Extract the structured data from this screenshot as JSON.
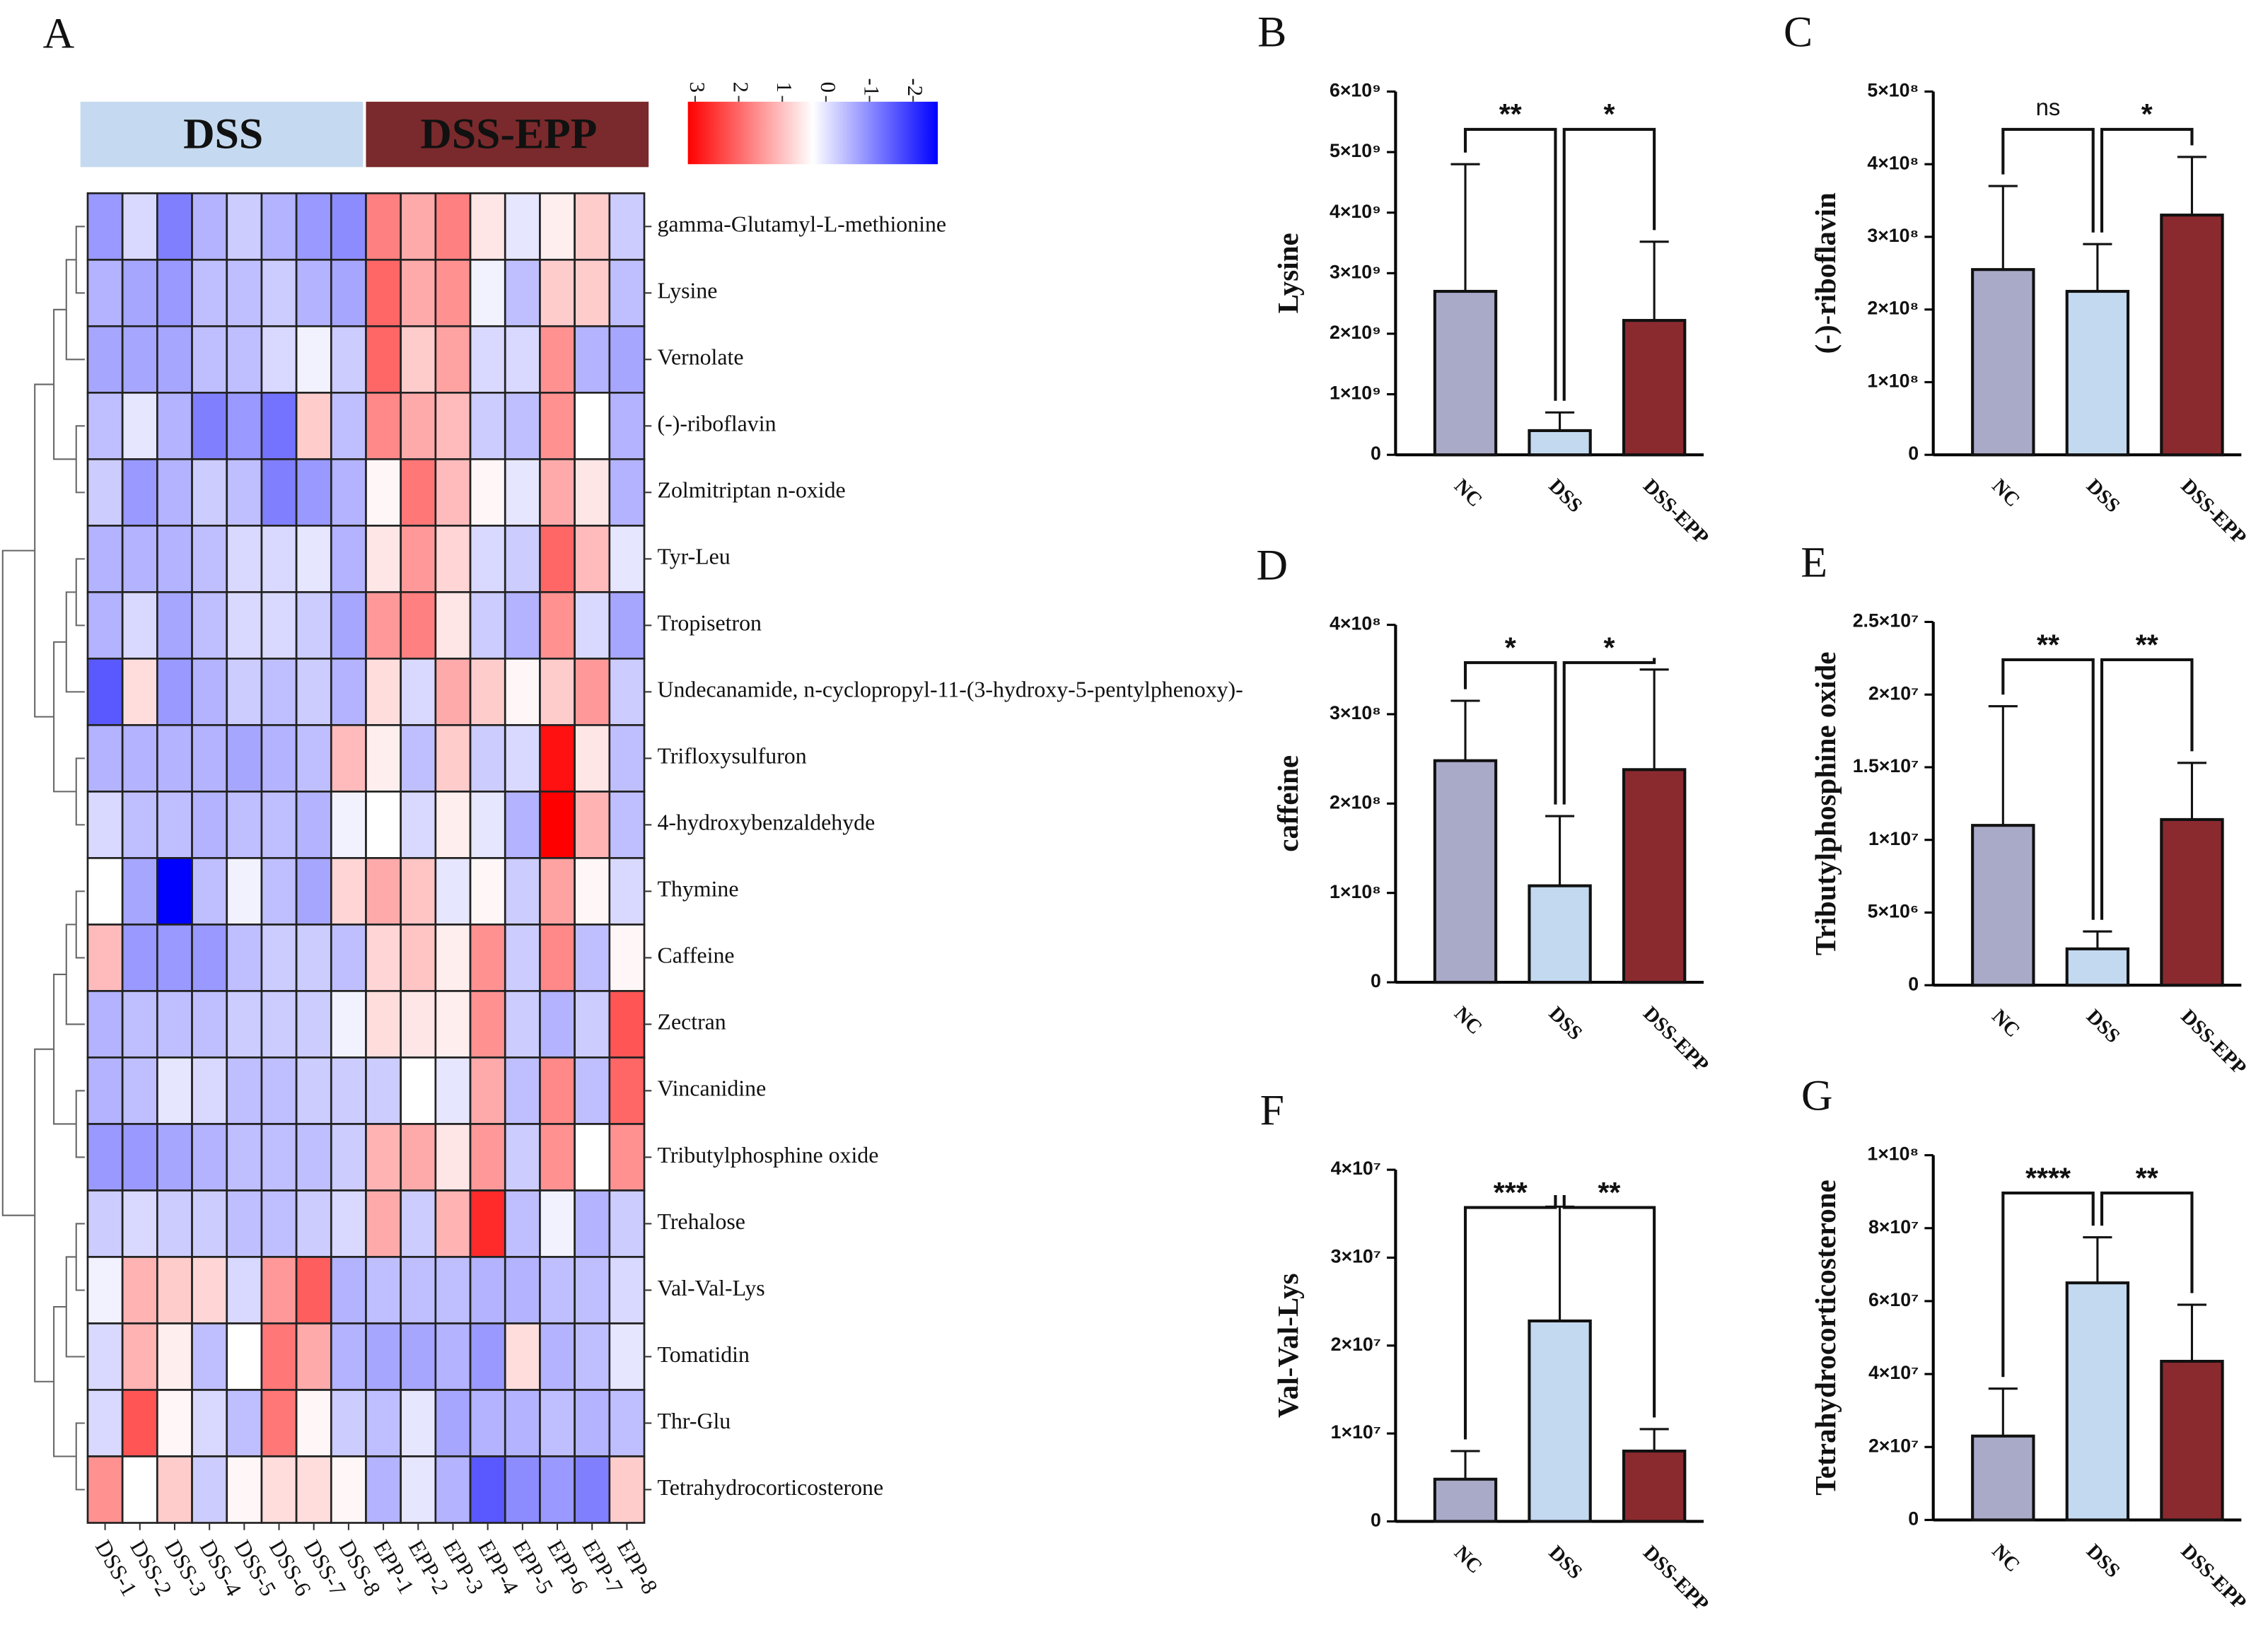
{
  "chart_data": [
    {
      "type": "heatmap",
      "label": "A",
      "rows": [
        "gamma-Glutamyl-L-methionine",
        "Lysine",
        "Vernolate",
        "(-)-riboflavin",
        "Zolmitriptan n-oxide",
        "Tyr-Leu",
        "Tropisetron",
        "Undecanamide, n-cyclopropyl-11-(3-hydroxy-5-pentylphenoxy)-",
        "Trifloxysulfuron",
        "4-hydroxybenzaldehyde",
        "Thymine",
        "Caffeine",
        "Zectran",
        "Vincanidine",
        "Tributylphosphine oxide",
        "Trehalose",
        "Val-Val-Lys",
        "Tomatidin",
        "Thr-Glu",
        "Tetrahydrocorticosterone"
      ],
      "columns": [
        "DSS-1",
        "DSS-2",
        "DSS-3",
        "DSS-4",
        "DSS-5",
        "DSS-6",
        "DSS-7",
        "DSS-8",
        "EPP-1",
        "EPP-2",
        "EPP-3",
        "EPP-4",
        "EPP-5",
        "EPP-6",
        "EPP-7",
        "EPP-8"
      ],
      "groups": [
        {
          "name": "DSS",
          "color": "#c5daf0"
        },
        {
          "name": "DSS-EPP",
          "color": "#7a2a2c"
        }
      ],
      "values": [
        [
          -0.8,
          -0.3,
          -1.0,
          -0.6,
          -0.4,
          -0.6,
          -0.8,
          -0.9,
          1.5,
          1.0,
          1.5,
          0.3,
          -0.2,
          0.2,
          0.6,
          -0.4
        ],
        [
          -0.6,
          -0.7,
          -0.8,
          -0.5,
          -0.5,
          -0.4,
          -0.6,
          -0.7,
          1.8,
          1.0,
          1.3,
          -0.1,
          -0.5,
          0.6,
          0.6,
          -0.5
        ],
        [
          -0.7,
          -0.7,
          -0.7,
          -0.5,
          -0.5,
          -0.3,
          -0.1,
          -0.4,
          1.8,
          0.6,
          1.1,
          -0.3,
          -0.3,
          1.3,
          -0.6,
          -0.7
        ],
        [
          -0.5,
          -0.2,
          -0.6,
          -1.0,
          -0.8,
          -1.1,
          0.6,
          -0.5,
          1.4,
          1.0,
          0.8,
          -0.4,
          -0.5,
          1.3,
          0.0,
          -0.6
        ],
        [
          -0.4,
          -0.8,
          -0.6,
          -0.4,
          -0.5,
          -1.0,
          -0.8,
          -0.6,
          0.1,
          1.6,
          0.8,
          0.1,
          -0.2,
          1.0,
          0.3,
          -0.6
        ],
        [
          -0.6,
          -0.6,
          -0.6,
          -0.5,
          -0.3,
          -0.3,
          -0.2,
          -0.6,
          0.3,
          1.2,
          0.5,
          -0.3,
          -0.4,
          1.8,
          0.8,
          -0.2
        ],
        [
          -0.6,
          -0.3,
          -0.7,
          -0.5,
          -0.3,
          -0.3,
          -0.4,
          -0.7,
          1.2,
          1.5,
          0.3,
          -0.4,
          -0.6,
          1.3,
          -0.3,
          -0.7
        ],
        [
          -1.3,
          0.4,
          -0.8,
          -0.6,
          -0.4,
          -0.5,
          -0.4,
          -0.6,
          0.4,
          -0.3,
          1.0,
          0.6,
          0.1,
          0.6,
          1.2,
          -0.4
        ],
        [
          -0.6,
          -0.6,
          -0.6,
          -0.6,
          -0.7,
          -0.6,
          -0.5,
          0.8,
          0.2,
          -0.5,
          0.6,
          -0.4,
          -0.3,
          2.8,
          0.3,
          -0.5
        ],
        [
          -0.3,
          -0.5,
          -0.5,
          -0.6,
          -0.5,
          -0.5,
          -0.6,
          -0.1,
          0.0,
          -0.3,
          0.2,
          -0.2,
          -0.6,
          3.0,
          0.9,
          -0.5
        ],
        [
          0.0,
          -0.7,
          -2.0,
          -0.5,
          -0.1,
          -0.5,
          -0.7,
          0.5,
          1.0,
          0.7,
          -0.2,
          0.1,
          -0.4,
          1.1,
          0.1,
          -0.3
        ],
        [
          0.8,
          -0.8,
          -0.8,
          -0.8,
          -0.5,
          -0.4,
          -0.4,
          -0.5,
          0.5,
          0.7,
          0.2,
          1.3,
          -0.4,
          1.4,
          -0.5,
          0.1
        ],
        [
          -0.6,
          -0.5,
          -0.5,
          -0.5,
          -0.4,
          -0.4,
          -0.4,
          -0.1,
          0.4,
          0.3,
          0.2,
          1.3,
          -0.4,
          -0.6,
          -0.4,
          2.0
        ],
        [
          -0.6,
          -0.5,
          -0.2,
          -0.3,
          -0.5,
          -0.5,
          -0.4,
          -0.4,
          -0.4,
          0.0,
          -0.2,
          1.0,
          -0.5,
          1.4,
          -0.5,
          1.8
        ],
        [
          -0.8,
          -0.8,
          -0.7,
          -0.6,
          -0.5,
          -0.5,
          -0.5,
          -0.4,
          0.9,
          1.0,
          0.3,
          1.2,
          -0.4,
          1.3,
          0.0,
          1.3
        ],
        [
          -0.4,
          -0.3,
          -0.4,
          -0.4,
          -0.5,
          -0.5,
          -0.4,
          -0.3,
          1.0,
          -0.4,
          0.9,
          2.5,
          -0.5,
          -0.1,
          -0.6,
          -0.4
        ],
        [
          -0.1,
          0.9,
          0.6,
          0.5,
          -0.3,
          1.2,
          1.9,
          -0.6,
          -0.5,
          -0.5,
          -0.5,
          -0.6,
          -0.6,
          -0.5,
          -0.5,
          -0.3
        ],
        [
          -0.3,
          0.9,
          0.2,
          -0.5,
          0.0,
          1.6,
          1.0,
          -0.6,
          -0.7,
          -0.7,
          -0.6,
          -0.8,
          0.4,
          -0.6,
          -0.5,
          -0.2
        ],
        [
          -0.3,
          2.0,
          0.1,
          -0.3,
          -0.5,
          1.6,
          0.1,
          -0.4,
          -0.5,
          -0.2,
          -0.7,
          -0.6,
          -0.6,
          -0.5,
          -0.6,
          -0.5
        ],
        [
          1.3,
          0.0,
          0.6,
          -0.4,
          0.1,
          0.4,
          0.4,
          0.1,
          -0.6,
          -0.2,
          -0.6,
          -1.3,
          -0.9,
          -0.8,
          -1.0,
          0.6
        ]
      ],
      "clim": [
        -2,
        3
      ],
      "cticks": [
        3,
        2,
        1,
        0,
        -1,
        -2
      ],
      "colors": {
        "low": "#0000ff",
        "mid": "#ffffff",
        "high": "#ff0000"
      }
    },
    {
      "type": "bar",
      "label": "B",
      "ylabel": "Lysine",
      "categories": [
        "NC",
        "DSS",
        "DSS-EPP"
      ],
      "values": [
        2700000000,
        400000000,
        2220000000
      ],
      "errors": [
        2100000000,
        300000000,
        1300000000
      ],
      "colors": [
        "#a9aac8",
        "#c3d9f0",
        "#8a2a2f"
      ],
      "ylim": [
        0,
        6000000000
      ],
      "yticks": [
        0,
        {
          "value": 1000000000,
          "label": "1×10⁹"
        },
        {
          "value": 2000000000,
          "label": "2×10⁹"
        },
        {
          "value": 3000000000,
          "label": "3×10⁹"
        },
        {
          "value": 4000000000,
          "label": "4×10⁹"
        },
        {
          "value": 5000000000,
          "label": "5×10⁹"
        },
        {
          "value": 6000000000,
          "label": "6×10⁹"
        }
      ],
      "comparisons": [
        {
          "pair": [
            "NC",
            "DSS"
          ],
          "label": "**"
        },
        {
          "pair": [
            "DSS",
            "DSS-EPP"
          ],
          "label": "*"
        }
      ]
    },
    {
      "type": "bar",
      "label": "C",
      "ylabel": "(-)-riboflavin",
      "categories": [
        "NC",
        "DSS",
        "DSS-EPP"
      ],
      "values": [
        255000000,
        225000000,
        330000000
      ],
      "errors": [
        115000000,
        65000000,
        80000000
      ],
      "colors": [
        "#a9aac8",
        "#c3d9f0",
        "#8a2a2f"
      ],
      "ylim": [
        0,
        500000000
      ],
      "yticks": [
        0,
        {
          "value": 100000000,
          "label": "1×10⁸"
        },
        {
          "value": 200000000,
          "label": "2×10⁸"
        },
        {
          "value": 300000000,
          "label": "3×10⁸"
        },
        {
          "value": 400000000,
          "label": "4×10⁸"
        },
        {
          "value": 500000000,
          "label": "5×10⁸"
        }
      ],
      "comparisons": [
        {
          "pair": [
            "NC",
            "DSS"
          ],
          "label": "ns"
        },
        {
          "pair": [
            "DSS",
            "DSS-EPP"
          ],
          "label": "*"
        }
      ]
    },
    {
      "type": "bar",
      "label": "D",
      "ylabel": "caffeine",
      "categories": [
        "NC",
        "DSS",
        "DSS-EPP"
      ],
      "values": [
        248000000,
        108000000,
        238000000
      ],
      "errors": [
        67000000,
        78000000,
        112000000
      ],
      "colors": [
        "#a9aac8",
        "#c3d9f0",
        "#8a2a2f"
      ],
      "ylim": [
        0,
        400000000
      ],
      "yticks": [
        0,
        {
          "value": 100000000,
          "label": "1×10⁸"
        },
        {
          "value": 200000000,
          "label": "2×10⁸"
        },
        {
          "value": 300000000,
          "label": "3×10⁸"
        },
        {
          "value": 400000000,
          "label": "4×10⁸"
        }
      ],
      "comparisons": [
        {
          "pair": [
            "NC",
            "DSS"
          ],
          "label": "*"
        },
        {
          "pair": [
            "DSS",
            "DSS-EPP"
          ],
          "label": "*"
        }
      ]
    },
    {
      "type": "bar",
      "label": "E",
      "ylabel": "Tributylphosphine oxide",
      "categories": [
        "NC",
        "DSS",
        "DSS-EPP"
      ],
      "values": [
        11000000,
        2500000,
        11400000
      ],
      "errors": [
        8200000,
        1200000,
        3900000
      ],
      "colors": [
        "#a9aac8",
        "#c3d9f0",
        "#8a2a2f"
      ],
      "ylim": [
        0,
        25000000
      ],
      "yticks": [
        0,
        {
          "value": 5000000,
          "label": "5×10⁶"
        },
        {
          "value": 10000000,
          "label": "1×10⁷"
        },
        {
          "value": 15000000,
          "label": "1.5×10⁷"
        },
        {
          "value": 20000000,
          "label": "2×10⁷"
        },
        {
          "value": 25000000,
          "label": "2.5×10⁷"
        }
      ],
      "comparisons": [
        {
          "pair": [
            "NC",
            "DSS"
          ],
          "label": "**"
        },
        {
          "pair": [
            "DSS",
            "DSS-EPP"
          ],
          "label": "**"
        }
      ]
    },
    {
      "type": "bar",
      "label": "F",
      "ylabel": "Val-Val-Lys",
      "categories": [
        "NC",
        "DSS",
        "DSS-EPP"
      ],
      "values": [
        4800000,
        22800000,
        8000000
      ],
      "errors": [
        3200000,
        13000000,
        2500000
      ],
      "colors": [
        "#a9aac8",
        "#c3d9f0",
        "#8a2a2f"
      ],
      "ylim": [
        0,
        40000000
      ],
      "yticks": [
        0,
        {
          "value": 10000000,
          "label": "1×10⁷"
        },
        {
          "value": 20000000,
          "label": "2×10⁷"
        },
        {
          "value": 30000000,
          "label": "3×10⁷"
        },
        {
          "value": 40000000,
          "label": "4×10⁷"
        }
      ],
      "comparisons": [
        {
          "pair": [
            "NC",
            "DSS"
          ],
          "label": "***"
        },
        {
          "pair": [
            "DSS",
            "DSS-EPP"
          ],
          "label": "**"
        }
      ]
    },
    {
      "type": "bar",
      "label": "G",
      "ylabel": "Tetrahydrocorticosterone",
      "categories": [
        "NC",
        "DSS",
        "DSS-EPP"
      ],
      "values": [
        23000000,
        65000000,
        43500000
      ],
      "errors": [
        13000000,
        12500000,
        15500000
      ],
      "colors": [
        "#a9aac8",
        "#c3d9f0",
        "#8a2a2f"
      ],
      "ylim": [
        0,
        100000000
      ],
      "yticks": [
        0,
        {
          "value": 20000000,
          "label": "2×10⁷"
        },
        {
          "value": 40000000,
          "label": "4×10⁷"
        },
        {
          "value": 60000000,
          "label": "6×10⁷"
        },
        {
          "value": 80000000,
          "label": "8×10⁷"
        },
        {
          "value": 100000000,
          "label": "1×10⁸"
        }
      ],
      "comparisons": [
        {
          "pair": [
            "NC",
            "DSS"
          ],
          "label": "****"
        },
        {
          "pair": [
            "DSS",
            "DSS-EPP"
          ],
          "label": "**"
        }
      ]
    }
  ]
}
